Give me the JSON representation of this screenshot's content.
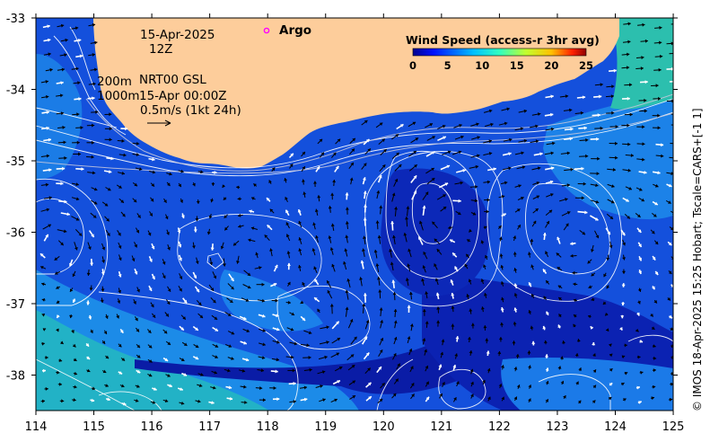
{
  "map": {
    "date_label": "15-Apr-2025",
    "time_label": "12Z",
    "depth_line_1": "200m",
    "depth_line_2": "1000m",
    "product": "NRT00 GSL",
    "product_time": "15-Apr 00:00Z",
    "scale_label": "0.5m/s (1kt 24h)",
    "argo_label": "Argo",
    "credit": "© IMOS 18-Apr-2025 15:25 Hobart; Tscale=CARS+[-1 1]",
    "x_ticks": [
      "114",
      "115",
      "116",
      "117",
      "118",
      "119",
      "120",
      "121",
      "122",
      "123",
      "124",
      "125"
    ],
    "y_ticks": [
      "-33",
      "-34",
      "-35",
      "-36",
      "-37",
      "-38"
    ],
    "land_color": "#fdcd9b",
    "sea_colors": [
      "#0b1ea8",
      "#1450dc",
      "#1a78ee",
      "#20b0c8"
    ]
  },
  "colorbar": {
    "title": "Wind Speed (access-r 3hr avg)",
    "tick_labels": [
      "0",
      "5",
      "10",
      "15",
      "20",
      "25"
    ]
  }
}
